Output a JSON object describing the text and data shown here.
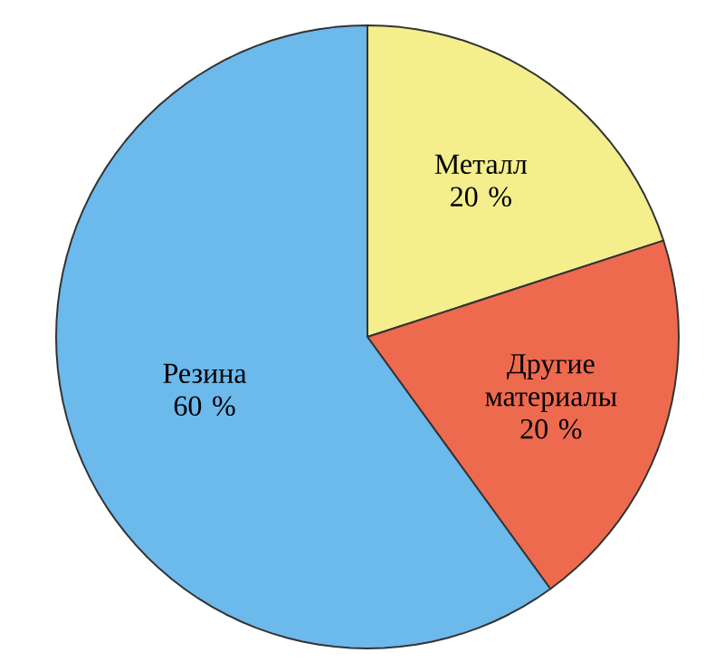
{
  "chart_data": {
    "type": "pie",
    "categories": [
      "Металл",
      "Другие материалы",
      "Резина"
    ],
    "values": [
      20,
      20,
      60
    ],
    "value_labels": [
      "20 %",
      "20 %",
      "60 %"
    ],
    "colors": [
      "#f4ee8c",
      "#ee6a4e",
      "#6cb9ec"
    ]
  }
}
